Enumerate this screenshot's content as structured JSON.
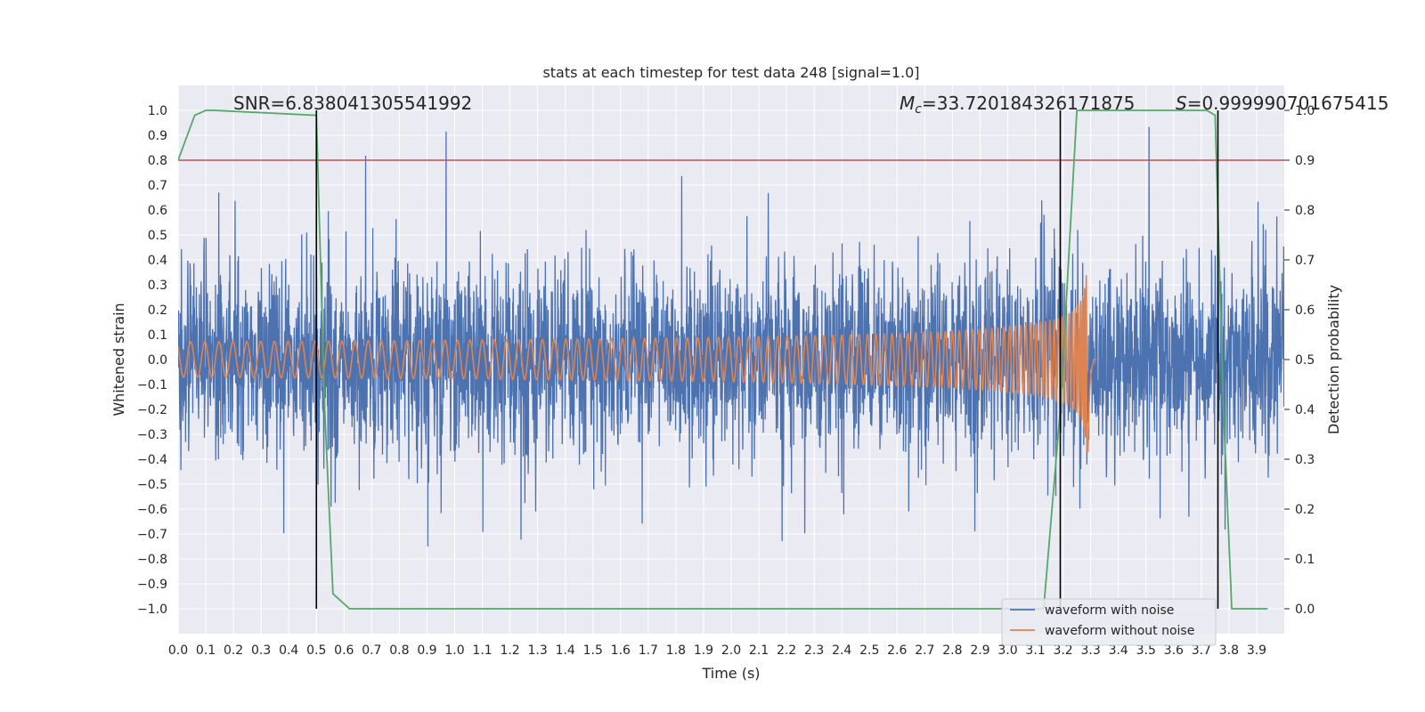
{
  "chart_data": {
    "type": "line",
    "title": "stats at each timestep for test data 248 [signal=1.0]",
    "xlabel": "Time (s)",
    "ylabel": "Whitened strain",
    "y2label": "Detection probability",
    "xlim": [
      0.0,
      4.0
    ],
    "ylim": [
      -1.1,
      1.1
    ],
    "y2lim": [
      -0.05,
      1.05
    ],
    "grid": true,
    "x_ticks": [
      "0.0",
      "0.1",
      "0.2",
      "0.3",
      "0.4",
      "0.5",
      "0.6",
      "0.7",
      "0.8",
      "0.9",
      "1.0",
      "1.1",
      "1.2",
      "1.3",
      "1.4",
      "1.5",
      "1.6",
      "1.7",
      "1.8",
      "1.9",
      "2.0",
      "2.1",
      "2.2",
      "2.3",
      "2.4",
      "2.5",
      "2.6",
      "2.7",
      "2.8",
      "2.9",
      "3.0",
      "3.1",
      "3.2",
      "3.3",
      "3.4",
      "3.5",
      "3.6",
      "3.7",
      "3.8",
      "3.9"
    ],
    "y_ticks": [
      "1.0",
      "0.9",
      "0.8",
      "0.7",
      "0.6",
      "0.5",
      "0.4",
      "0.3",
      "0.2",
      "0.1",
      "0.0",
      "−0.1",
      "−0.2",
      "−0.3",
      "−0.4",
      "−0.5",
      "−0.6",
      "−0.7",
      "−0.8",
      "−0.9",
      "−1.0"
    ],
    "y2_ticks": [
      "1.0",
      "0.9",
      "0.8",
      "0.7",
      "0.6",
      "0.5",
      "0.4",
      "0.3",
      "0.2",
      "0.1",
      "0.0"
    ],
    "annotations": {
      "snr": "SNR=6.838041305541992",
      "mc_symbol": "M",
      "mc_sub": "c",
      "mc_value": "=33.720184326171875",
      "s_symbol": "S",
      "s_value": "=0.999990701675415"
    },
    "legend": {
      "placement": "lower-right",
      "entries": [
        "waveform with noise",
        "waveform without noise"
      ]
    },
    "colors": {
      "noise": "#4c72b0",
      "clean": "#dd8452",
      "probability": "#55a868",
      "threshold": "#c44e52",
      "markers": "#000000",
      "background": "#eaeaf2",
      "grid": "#ffffff"
    },
    "threshold": 0.9,
    "vertical_markers": [
      0.5,
      3.19,
      3.76
    ],
    "series": [
      {
        "name": "waveform with noise",
        "description_values": "dense noisy strain, amplitude mostly within ±0.45 with spikes near ±1.0",
        "sample_rate": 2048,
        "amplitude": 0.3
      },
      {
        "name": "waveform without noise",
        "chirp": {
          "t_merger": 3.29,
          "peak_amplitude": 0.38,
          "start": 0.0
        }
      },
      {
        "name": "Detection probability",
        "x": [
          0.0,
          0.06,
          0.1,
          0.13,
          0.5,
          0.53,
          0.56,
          0.62,
          3.13,
          3.19,
          3.25,
          3.72,
          3.75,
          3.78,
          3.81,
          3.94
        ],
        "values": [
          0.9,
          0.99,
          1.0,
          1.0,
          0.99,
          0.4,
          0.03,
          0.0,
          0.0,
          0.4,
          1.0,
          1.0,
          0.99,
          0.4,
          0.0,
          0.0
        ]
      }
    ]
  }
}
